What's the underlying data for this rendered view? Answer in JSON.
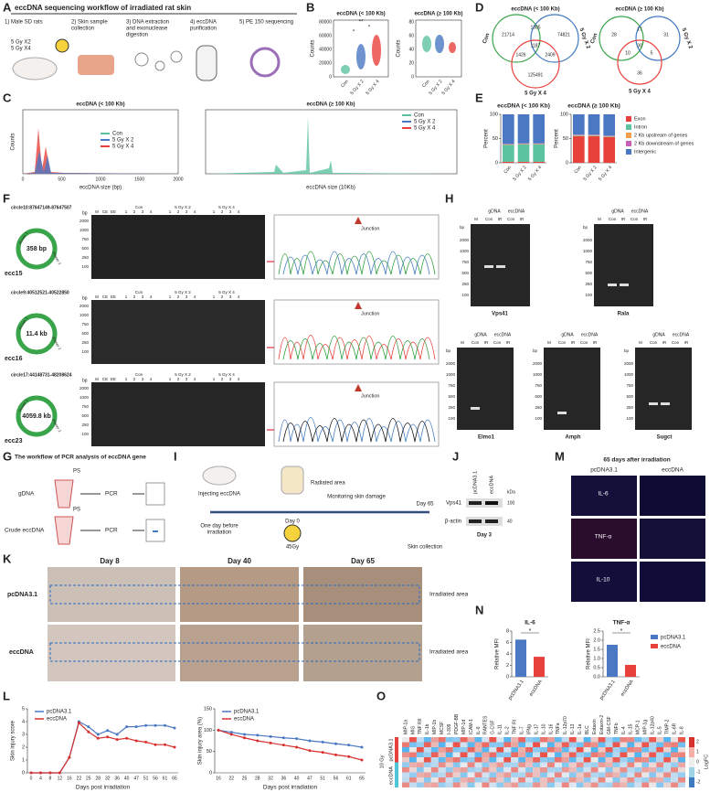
{
  "panels": {
    "A": {
      "letter": "A",
      "title": "eccDNA sequencing workflow of irradiated rat skin",
      "steps": [
        [
          "1) Male SD rats"
        ],
        [
          "2) Skin sample",
          "collection"
        ],
        [
          "3) DNA extraction",
          "and exonuclease",
          "digestion"
        ],
        [
          "4) eccDNA",
          "purification"
        ],
        [
          "5) PE 150 sequencing"
        ]
      ],
      "doses": [
        "5 Gy X2",
        "5 Gy X4"
      ]
    },
    "B": {
      "letter": "B",
      "titles": [
        "eccDNA (< 100 Kb)",
        "eccDNA (≥ 100 Kb)"
      ],
      "ylabel": "Counts",
      "yticks_left": [
        "0",
        "20000",
        "40000",
        "60000",
        "80000"
      ],
      "yticks_right": [
        "0",
        "20",
        "40",
        "60",
        "80"
      ],
      "groups": [
        "Con",
        "5 Gy X 2",
        "5 Gy X 4"
      ],
      "sig": [
        "**",
        "*",
        "*"
      ]
    },
    "C": {
      "letter": "C",
      "titles": [
        "eccDNA (< 100 Kb)",
        "eccDNA (≥ 100 Kb)"
      ],
      "xlabels": [
        "eccDNA size (bp)",
        "eccDNA size (10Kb)"
      ],
      "ylabel": "Counts",
      "xticks_left": [
        "0",
        "500",
        "1000",
        "1500",
        "2000"
      ],
      "legend": [
        "Con",
        "5 Gy X 2",
        "5 Gy X 4"
      ]
    },
    "D": {
      "letter": "D",
      "titles": [
        "eccDNA (< 100 Kb)",
        "eccDNA (≥ 100 Kb)"
      ],
      "sets": [
        "Con",
        "5 Gy X 2",
        "5 Gy X 4"
      ],
      "left": [
        "21714",
        "1305",
        "74821",
        "1187",
        "1426",
        "2409",
        "125491"
      ],
      "right": [
        "28",
        "17",
        "31",
        "30",
        "10",
        "5",
        "36"
      ]
    },
    "E": {
      "letter": "E"
    },
    "F": {
      "letter": "F",
      "circles": [
        {
          "name": "circle10:87647149-87647507",
          "size": "358 bp",
          "label": "ecc15"
        },
        {
          "name": "circle9:40512521-40522850",
          "size": "11.4 kb",
          "label": "ecc16"
        },
        {
          "name": "circle17:44148731-48208624",
          "size": "4059.8 kb",
          "label": "ecc23"
        }
      ],
      "primers": [
        "Primer 1",
        "Primer 2"
      ],
      "lanes": [
        "M",
        "CE",
        "EE",
        "1",
        "2",
        "3",
        "4"
      ],
      "groups": [
        "Con",
        "5 Gy X 2",
        "5 Gy X 4"
      ],
      "junction": "Junction",
      "bp": "bp",
      "ladder": [
        "2000",
        "1000",
        "750",
        "500",
        "250",
        "100"
      ]
    },
    "G": {
      "letter": "G",
      "title": "The workflow of PCR analysis of eccDNA gene",
      "samples": [
        "gDNA",
        "Crude eccDNA"
      ],
      "ps": "PS",
      "pcr": "PCR"
    },
    "H": {
      "letter": "H",
      "genes": [
        "Vps41",
        "Rala",
        "Elmo1",
        "Amph",
        "Sugct"
      ],
      "cols": [
        "gDNA",
        "eccDNA"
      ],
      "lanes": [
        "M",
        "Con",
        "IR"
      ],
      "bp": "bp",
      "ladder": [
        "2000",
        "1000",
        "750",
        "500",
        "250",
        "100"
      ]
    },
    "I": {
      "letter": "I",
      "texts": [
        "Injecting eccDNA",
        "Radiated area",
        "Monitoring skin damage",
        "One day before",
        "irradiation",
        "Day 0",
        "Day 65",
        "45Gy",
        "Skin collection"
      ]
    },
    "J": {
      "letter": "J",
      "lanes": [
        "pcDNA3.1",
        "eccDNA"
      ],
      "proteins": [
        "Vps41",
        "β-actin"
      ],
      "kda": "kDa",
      "markers": [
        "100",
        "40"
      ],
      "day": "Day 3"
    },
    "K": {
      "letter": "K",
      "days": [
        "Day 8",
        "Day 40",
        "Day 65"
      ],
      "rows": [
        "pcDNA3.1",
        "eccDNA"
      ],
      "area": "Irradiated area"
    },
    "L": {
      "letter": "L"
    },
    "M": {
      "letter": "M",
      "title": "65 days after irradiation",
      "cols": [
        "pcDNA3.1",
        "eccDNA"
      ],
      "rows": [
        "IL-6",
        "TNF-α",
        "IL-10"
      ]
    },
    "N": {
      "letter": "N"
    },
    "O": {
      "letter": "O",
      "rows": [
        "pcDNA3.1",
        "eccDNA"
      ],
      "group": "10 Gy",
      "legend_title": "LogFC",
      "legend_ticks": [
        "2",
        "1",
        "0",
        "-1",
        "-2"
      ],
      "cytokines": [
        "MIP-1a",
        "MIG",
        "TNF RII",
        "IL-1b",
        "MIP-1b",
        "MCSF",
        "I-309",
        "PDGF-BB",
        "MIP-1d",
        "ICAM-1",
        "IL-6",
        "RANTES",
        "G-CSF",
        "IL-11",
        "IL-2",
        "TNF RI",
        "IL-7",
        "IFNg",
        "IL-17",
        "IL-10",
        "IL-16",
        "TNFa",
        "IL-12p70",
        "IL-13",
        "IL-1a",
        "BLC",
        "Eotaxin",
        "Eotaxin-2",
        "GM-CSF",
        "TNFb",
        "IL-4",
        "IL-15",
        "MCP-1",
        "MIP-1g",
        "IL-12p40",
        "IL-5",
        "TIMP-2",
        "IL-6R",
        "IL-8"
      ]
    }
  },
  "chart_data": [
    {
      "type": "stacked_bar",
      "title": "eccDNA (< 100 Kb)",
      "ylabel": "Percent",
      "categories": [
        "Con",
        "5 Gy X 2",
        "5 Gy X 4"
      ],
      "ylim": [
        0,
        100
      ],
      "yticks": [
        0,
        50,
        100
      ],
      "series": [
        {
          "color": "#e8413c",
          "values": [
            2,
            2,
            2
          ]
        },
        {
          "color": "#5cc3a0",
          "values": [
            35,
            36,
            36
          ]
        },
        {
          "color": "#f0a04b",
          "values": [
            1,
            1,
            1
          ]
        },
        {
          "color": "#c75fb4",
          "values": [
            1,
            1,
            1
          ]
        },
        {
          "color": "#4a78c2",
          "values": [
            61,
            60,
            60
          ]
        }
      ]
    },
    {
      "type": "stacked_bar",
      "title": "eccDNA (≥ 100 Kb)",
      "ylabel": "Percent",
      "categories": [
        "Con",
        "5 Gy X 2",
        "5 Gy X 4"
      ],
      "ylim": [
        0,
        100
      ],
      "yticks": [
        0,
        50,
        100
      ],
      "legend": "right",
      "series": [
        {
          "name": "Exon",
          "color": "#e8413c",
          "values": [
            55,
            55,
            53
          ]
        },
        {
          "name": "Intron",
          "color": "#5cc3a0",
          "values": [
            1,
            1,
            1
          ]
        },
        {
          "name": "2 Kb upstream of genes",
          "color": "#f0a04b",
          "values": [
            1,
            1,
            1
          ]
        },
        {
          "name": "2 Kb downstream of genes",
          "color": "#c75fb4",
          "values": [
            1,
            1,
            1
          ]
        },
        {
          "name": "Intergenic",
          "color": "#4a78c2",
          "values": [
            42,
            42,
            44
          ]
        }
      ]
    },
    {
      "type": "line",
      "ylabel": "Skin injury score",
      "xlabel": "Days post irradiation",
      "categories": [
        "0",
        "4",
        "8",
        "12",
        "16",
        "22",
        "25",
        "28",
        "32",
        "36",
        "40",
        "47",
        "51",
        "56",
        "61",
        "65"
      ],
      "ylim": [
        0,
        5
      ],
      "yticks": [
        0,
        1,
        2,
        3,
        4,
        5
      ],
      "legend": "upper left",
      "series": [
        {
          "name": "pcDNA3.1",
          "color": "#4a78c2",
          "values": [
            0,
            0,
            0,
            0,
            1.2,
            4.0,
            3.6,
            3.0,
            3.3,
            3.0,
            3.6,
            3.6,
            3.7,
            3.7,
            3.7,
            3.5
          ]
        },
        {
          "name": "eccDNA",
          "color": "#d7312e",
          "values": [
            0,
            0,
            0,
            0,
            1.2,
            3.9,
            3.2,
            2.7,
            2.8,
            2.6,
            2.7,
            2.5,
            2.4,
            2.2,
            2.2,
            2.0
          ]
        }
      ]
    },
    {
      "type": "line",
      "ylabel": "Skin injury area (%)",
      "xlabel": "Days post irradiation",
      "categories": [
        "16",
        "22",
        "25",
        "28",
        "32",
        "36",
        "40",
        "47",
        "51",
        "56",
        "61",
        "65"
      ],
      "ylim": [
        0,
        150
      ],
      "yticks": [
        0,
        50,
        100,
        150
      ],
      "legend": "upper left",
      "series": [
        {
          "name": "pcDNA3.1",
          "color": "#4a78c2",
          "values": [
            100,
            95,
            90,
            88,
            85,
            82,
            80,
            75,
            72,
            68,
            65,
            60
          ]
        },
        {
          "name": "eccDNA",
          "color": "#d7312e",
          "values": [
            100,
            90,
            82,
            75,
            70,
            65,
            60,
            52,
            48,
            42,
            38,
            30
          ]
        }
      ]
    },
    {
      "type": "bar",
      "title": "IL-6",
      "ylabel": "Relative MFI",
      "annotation": "*",
      "categories": [
        "pcDNA3.1",
        "eccDNA"
      ],
      "colors": [
        "#4a78c2",
        "#e8413c"
      ],
      "values": [
        6.5,
        3.5
      ],
      "ylim": [
        0,
        8
      ],
      "yticks": [
        0,
        2,
        4,
        6,
        8
      ]
    },
    {
      "type": "bar",
      "title": "TNF-α",
      "ylabel": "Relative MFI",
      "annotation": "*",
      "categories": [
        "pcDNA3.1",
        "eccDNA"
      ],
      "legend": "right",
      "colors": [
        "#4a78c2",
        "#e8413c"
      ],
      "values": [
        1.75,
        0.65
      ],
      "ylim": [
        0,
        2.5
      ],
      "yticks": [
        {
          "value": 0,
          "label": "0.0"
        },
        0.5,
        {
          "value": 1,
          "label": "1.0"
        },
        1.5,
        {
          "value": 2,
          "label": "2.0"
        },
        2.5
      ]
    }
  ]
}
